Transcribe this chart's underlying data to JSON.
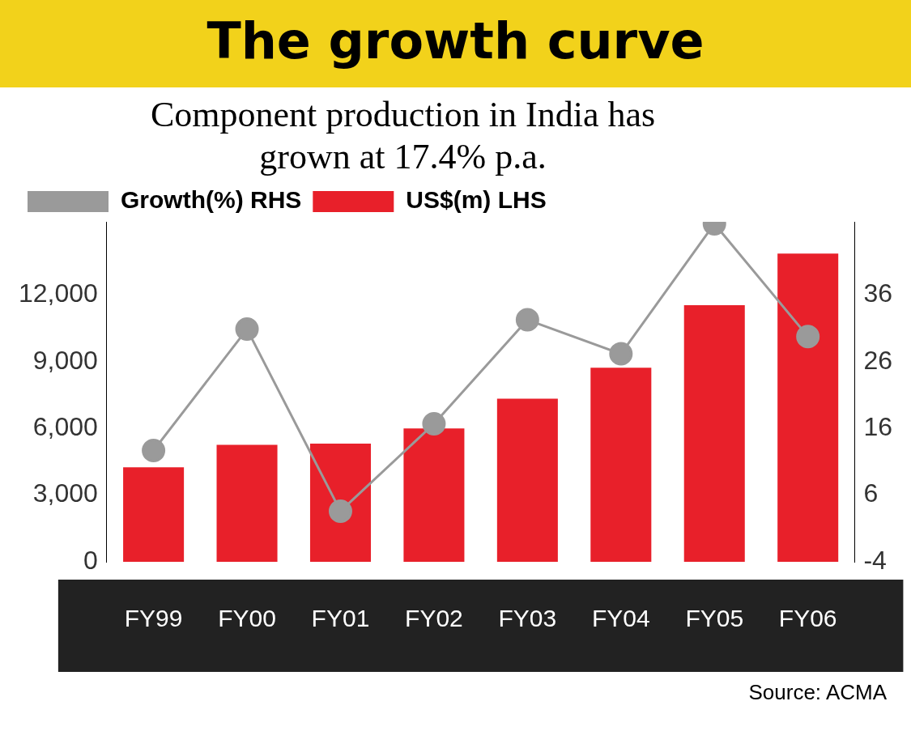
{
  "chart_data": {
    "type": "bar",
    "title": "The growth curve",
    "subtitle": "Component production in India has grown at 17.4% p.a.",
    "categories": [
      "FY99",
      "FY00",
      "FY01",
      "FY02",
      "FY03",
      "FY04",
      "FY05",
      "FY06"
    ],
    "series": [
      {
        "name": "Growth(%) RHS",
        "type": "line",
        "axis": "y2",
        "color": "#9a9a9a",
        "values": [
          12.7,
          30.9,
          3.6,
          16.7,
          32.3,
          27.2,
          46.7,
          29.8
        ]
      },
      {
        "name": "US$(m) LHS",
        "axis": "y",
        "color": "#e8202a",
        "values": [
          4250,
          5260,
          5320,
          6000,
          7340,
          8730,
          11550,
          13870
        ]
      }
    ],
    "ylim": [
      0,
      15300
    ],
    "yticks": [
      {
        "value": 0,
        "label": "0"
      },
      {
        "value": 3000,
        "label": "3,000"
      },
      {
        "value": 6000,
        "label": "6,000"
      },
      {
        "value": 9000,
        "label": "9,000"
      },
      {
        "value": 12000,
        "label": "12,000"
      }
    ],
    "y2lim": [
      -4,
      47
    ],
    "y2ticks": [
      -4,
      6,
      16,
      26,
      36
    ],
    "legend": "top left",
    "marker": "circle",
    "grid": false,
    "annotations": [
      "Source: ACMA"
    ]
  }
}
